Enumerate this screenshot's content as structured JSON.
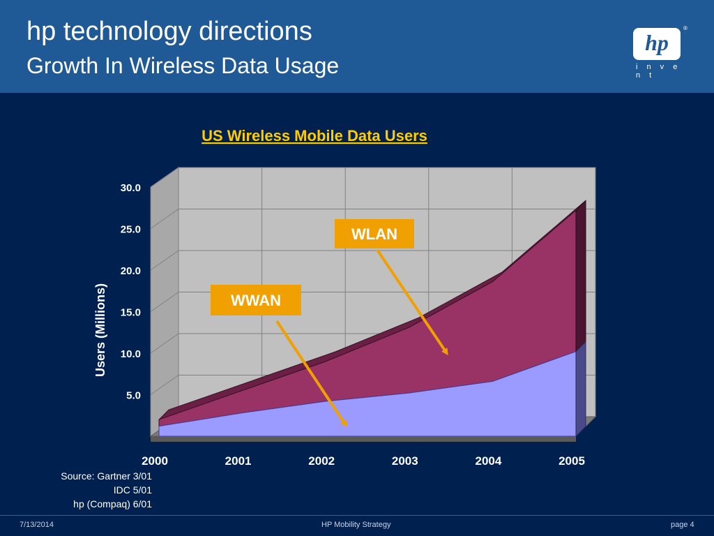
{
  "header": {
    "title": "hp technology directions",
    "subtitle": "Growth In Wireless Data Usage",
    "logo_mark": "hp",
    "logo_reg": "®",
    "logo_tagline": "i n v e n t"
  },
  "chart_data": {
    "type": "area",
    "title": "US Wireless Mobile Data Users",
    "xlabel": "",
    "ylabel": "Users (Millions)",
    "categories": [
      "2000",
      "2001",
      "2002",
      "2003",
      "2004",
      "2005"
    ],
    "ylim": [
      0,
      30
    ],
    "yticks": [
      "5.0",
      "10.0",
      "15.0",
      "20.0",
      "25.0",
      "30.0"
    ],
    "grid": true,
    "three_d": true,
    "stacked": true,
    "series": [
      {
        "name": "WWAN",
        "values": [
          1.2,
          2.8,
          4.2,
          5.2,
          6.6,
          10.2
        ],
        "color": "#9a9aff"
      },
      {
        "name": "WLAN",
        "values": [
          0.8,
          2.7,
          4.8,
          7.9,
          12.0,
          17.0
        ],
        "color": "#993366"
      }
    ],
    "annotations": [
      {
        "label": "WLAN",
        "target_series": "WLAN"
      },
      {
        "label": "WWAN",
        "target_series": "WWAN"
      }
    ],
    "colors": {
      "label_box": "#f0a000",
      "arrow": "#f0a000",
      "title": "#ffcc00"
    }
  },
  "source": {
    "lines": [
      "Source: Gartner 3/01",
      "IDC 5/01",
      "hp (Compaq) 6/01"
    ]
  },
  "footer": {
    "date": "7/13/2014",
    "center": "HP Mobility Strategy",
    "page": "page 4"
  }
}
